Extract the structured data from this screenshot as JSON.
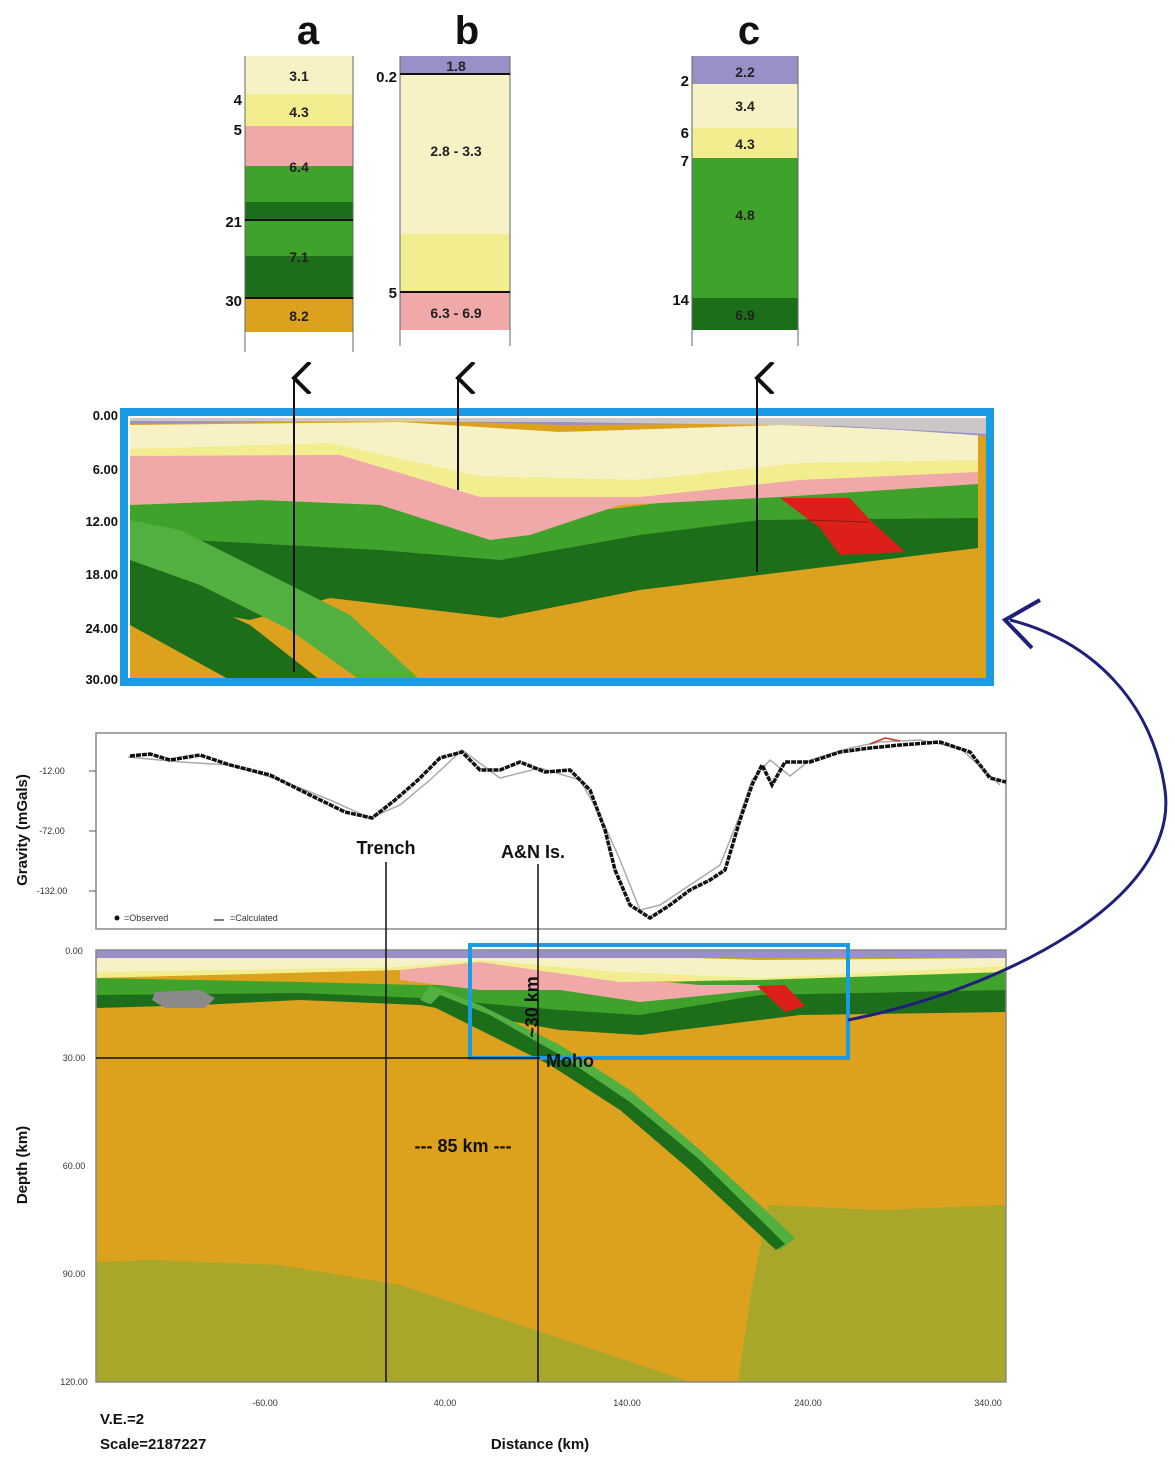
{
  "columns": [
    {
      "letter": "a",
      "boundary_labels": [
        "4",
        "5",
        "21",
        "30"
      ],
      "layer_velocities": [
        "3.1",
        "4.3",
        "6.4",
        "7.1",
        "8.2"
      ]
    },
    {
      "letter": "b",
      "boundary_labels": [
        "0.2",
        "5"
      ],
      "layer_velocities": [
        "1.8",
        "2.8 - 3.3",
        "6.3 - 6.9"
      ]
    },
    {
      "letter": "c",
      "boundary_labels": [
        "2",
        "6",
        "7",
        "14"
      ],
      "layer_velocities": [
        "2.2",
        "3.4",
        "4.3",
        "4.8",
        "6.9"
      ]
    }
  ],
  "zoom_panel": {
    "depth_ticks": [
      "0.00",
      "6.00",
      "12.00",
      "18.00",
      "24.00",
      "30.00"
    ]
  },
  "gravity_panel": {
    "ylabel": "Gravity (mGals)",
    "y_ticks": [
      "-12.00",
      "-72.00",
      "-132.00"
    ],
    "legend_observed": "=Observed",
    "legend_calculated": "=Calculated"
  },
  "depth_panel": {
    "ylabel": "Depth (km)",
    "xlabel": "Distance (km)",
    "y_ticks": [
      "0.00",
      "30.00",
      "60.00",
      "90.00",
      "120.00"
    ],
    "x_ticks": [
      "-60.00",
      "40.00",
      "140.00",
      "240.00",
      "340.00"
    ]
  },
  "annotations": {
    "trench": "Trench",
    "islands": "A&N Is.",
    "moho": "Moho",
    "moho_depth": "~30 km",
    "distance": "--- 85 km ---"
  },
  "footer": {
    "ve": "V.E.=2",
    "scale": "Scale=2187227"
  },
  "colors": {
    "water": "#9a90c8",
    "sediment_light": "#f6f2c6",
    "sediment_yellow": "#f2ee90",
    "upper_crust_pink": "#f0a8a8",
    "crust_green": "#3fa22a",
    "lower_crust_dark": "#1d6e1a",
    "mantle": "#dca21e",
    "deep_mantle": "#a9a72a",
    "slab_light": "#52b040",
    "intrusion_red": "#dd1f1a",
    "frame_blue": "#1a9be6",
    "arrow_navy": "#1f1f7a"
  }
}
